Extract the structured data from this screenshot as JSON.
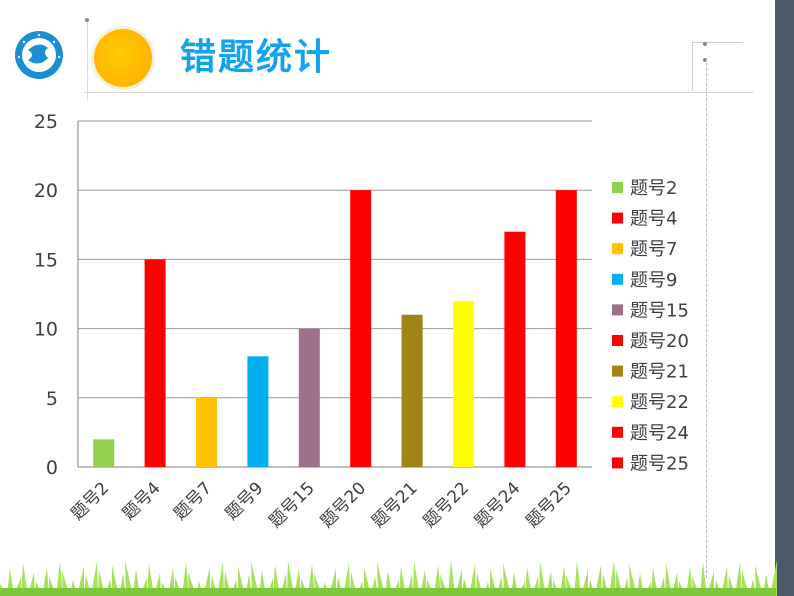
{
  "header": {
    "title": "错题统计"
  },
  "colors": {
    "title": "#11a3ec",
    "band": "#4a5a68",
    "sun": "#ffb400",
    "grass": "#8cd63c"
  },
  "icons": [
    "school-logo-icon",
    "sun-icon",
    "grass-decoration"
  ],
  "chart_data": {
    "type": "bar",
    "categories": [
      "题号2",
      "题号4",
      "题号7",
      "题号9",
      "题号15",
      "题号20",
      "题号21",
      "题号22",
      "题号24",
      "题号25"
    ],
    "values": [
      2,
      15,
      5,
      8,
      10,
      20,
      11,
      12,
      17,
      20
    ],
    "colors": [
      "#92d050",
      "#ff0000",
      "#ffc000",
      "#00b0f0",
      "#a0708a",
      "#ff0000",
      "#a08418",
      "#ffff00",
      "#ff0000",
      "#ff0000"
    ],
    "yticks": [
      0,
      5,
      10,
      15,
      20,
      25
    ],
    "ylim": [
      0,
      25
    ],
    "title": "",
    "xlabel": "",
    "ylabel": "",
    "grid": true,
    "legend": {
      "position": "right",
      "entries": [
        "题号2",
        "题号4",
        "题号7",
        "题号9",
        "题号15",
        "题号20",
        "题号21",
        "题号22",
        "题号24",
        "题号25"
      ]
    }
  }
}
